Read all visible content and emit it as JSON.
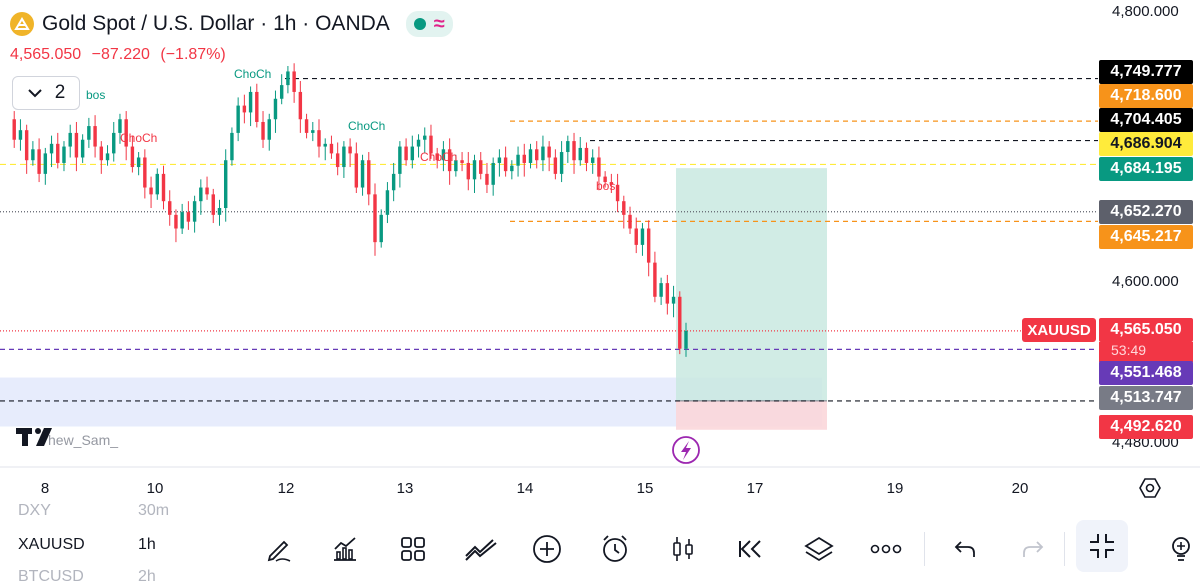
{
  "header": {
    "symbol_title": "Gold Spot / U.S. Dollar · 1h · OANDA",
    "last_price": "4,565.050",
    "change": "−87.220",
    "change_pct": "(−1.87%)",
    "indicator_count": "2",
    "watermark": "hew_Sam_"
  },
  "colors": {
    "up": "#089981",
    "down": "#f23645",
    "accent": "#2962ff"
  },
  "annotations": {
    "bos_1": "bos",
    "choch_1": "ChoCh",
    "choch_2": "ChoCh",
    "choch_3": "ChoCh",
    "choch_4": "ChoCh",
    "bos_2": "bos"
  },
  "price_axis": {
    "top_label": "4,800.000",
    "mid_label": "4,600.000",
    "bottom_label": "4,480.000"
  },
  "price_tags": [
    {
      "value": "4,749.777",
      "color": "#000000"
    },
    {
      "value": "4,718.600",
      "color": "#f7931a"
    },
    {
      "value": "4,704.405",
      "color": "#000000"
    },
    {
      "value": "4,686.904",
      "color": "#ffeb3b"
    },
    {
      "value": "4,684.195",
      "color": "#089981"
    },
    {
      "value": "4,652.270",
      "color": "#5d606b"
    },
    {
      "value": "4,645.217",
      "color": "#f7931a"
    },
    {
      "value": "4,565.050",
      "color": "#f23645"
    },
    {
      "value": "4,551.468",
      "color": "#673ab7"
    },
    {
      "value": "4,513.747",
      "color": "#787b86"
    },
    {
      "value": "4,492.620",
      "color": "#f23645"
    }
  ],
  "symbol_tag": "XAUUSD",
  "countdown": "53:49",
  "time_axis": [
    "8",
    "10",
    "12",
    "13",
    "14",
    "15",
    "17",
    "19",
    "20"
  ],
  "watchlist": [
    {
      "symbol": "DXY",
      "interval": "30m"
    },
    {
      "symbol": "XAUUSD",
      "interval": "1h"
    },
    {
      "symbol": "BTCUSD",
      "interval": "2h"
    }
  ],
  "toolbar": {
    "items": [
      "pencil-icon",
      "indicators-icon",
      "layouts-icon",
      "compare-icon",
      "add-icon",
      "alert-clock-icon",
      "candles-icon",
      "replay-icon",
      "layers-icon",
      "more-icon",
      "undo-icon",
      "redo-icon",
      "fullscreen-exit-icon",
      "bulb-icon"
    ]
  },
  "chart_data": {
    "type": "candlestick",
    "symbol": "XAUUSD",
    "x_ticks": [
      "8",
      "10",
      "12",
      "13",
      "14",
      "15",
      "17",
      "19",
      "20"
    ],
    "ylim": [
      4470,
      4812
    ],
    "last": 4565.05,
    "levels": [
      4749.777,
      4718.6,
      4704.405,
      4686.904,
      4684.195,
      4652.27,
      4645.217,
      4565.05,
      4551.468,
      4513.747,
      4492.62
    ],
    "position": {
      "entry": 4513.747,
      "target": 4684.195,
      "stop": 4492.62
    },
    "demand_zone": [
      4495,
      4525
    ]
  }
}
